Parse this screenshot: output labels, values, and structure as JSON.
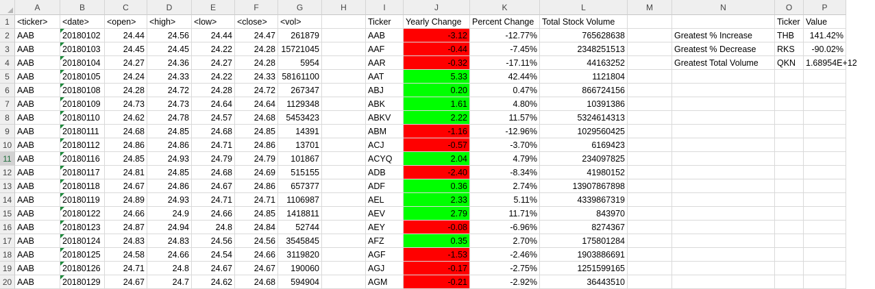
{
  "columns": [
    "A",
    "B",
    "C",
    "D",
    "E",
    "F",
    "G",
    "H",
    "I",
    "J",
    "K",
    "L",
    "M",
    "N",
    "O",
    "P"
  ],
  "rows": [
    "1",
    "2",
    "3",
    "4",
    "5",
    "6",
    "7",
    "8",
    "9",
    "10",
    "11",
    "12",
    "13",
    "14",
    "15",
    "16",
    "17",
    "18",
    "19",
    "20"
  ],
  "selected_row": "11",
  "data_headers": [
    "<ticker>",
    "<date>",
    "<open>",
    "<high>",
    "<low>",
    "<close>",
    "<vol>"
  ],
  "data_rows": [
    [
      "AAB",
      "20180102",
      "24.44",
      "24.56",
      "24.44",
      "24.47",
      "261879"
    ],
    [
      "AAB",
      "20180103",
      "24.45",
      "24.45",
      "24.22",
      "24.28",
      "15721045"
    ],
    [
      "AAB",
      "20180104",
      "24.27",
      "24.36",
      "24.27",
      "24.28",
      "5954"
    ],
    [
      "AAB",
      "20180105",
      "24.24",
      "24.33",
      "24.22",
      "24.33",
      "58161100"
    ],
    [
      "AAB",
      "20180108",
      "24.28",
      "24.72",
      "24.28",
      "24.72",
      "267347"
    ],
    [
      "AAB",
      "20180109",
      "24.73",
      "24.73",
      "24.64",
      "24.64",
      "1129348"
    ],
    [
      "AAB",
      "20180110",
      "24.62",
      "24.78",
      "24.57",
      "24.68",
      "5453423"
    ],
    [
      "AAB",
      "20180111",
      "24.68",
      "24.85",
      "24.68",
      "24.85",
      "14391"
    ],
    [
      "AAB",
      "20180112",
      "24.86",
      "24.86",
      "24.71",
      "24.86",
      "13701"
    ],
    [
      "AAB",
      "20180116",
      "24.85",
      "24.93",
      "24.79",
      "24.79",
      "101867"
    ],
    [
      "AAB",
      "20180117",
      "24.81",
      "24.85",
      "24.68",
      "24.69",
      "515155"
    ],
    [
      "AAB",
      "20180118",
      "24.67",
      "24.86",
      "24.67",
      "24.86",
      "657377"
    ],
    [
      "AAB",
      "20180119",
      "24.89",
      "24.93",
      "24.71",
      "24.71",
      "1106987"
    ],
    [
      "AAB",
      "20180122",
      "24.66",
      "24.9",
      "24.66",
      "24.85",
      "1418811"
    ],
    [
      "AAB",
      "20180123",
      "24.87",
      "24.94",
      "24.8",
      "24.84",
      "52744"
    ],
    [
      "AAB",
      "20180124",
      "24.83",
      "24.83",
      "24.56",
      "24.56",
      "3545845"
    ],
    [
      "AAB",
      "20180125",
      "24.58",
      "24.66",
      "24.54",
      "24.66",
      "3119820"
    ],
    [
      "AAB",
      "20180126",
      "24.71",
      "24.8",
      "24.67",
      "24.67",
      "190060"
    ],
    [
      "AAB",
      "20180129",
      "24.67",
      "24.7",
      "24.62",
      "24.68",
      "594904"
    ]
  ],
  "summary_headers": [
    "Ticker",
    "Yearly Change",
    "Percent Change",
    "Total Stock Volume"
  ],
  "summary_rows": [
    {
      "ticker": "AAB",
      "change": "-3.12",
      "pct": "-12.77%",
      "vol": "765628638",
      "color": "#ff0000"
    },
    {
      "ticker": "AAF",
      "change": "-0.44",
      "pct": "-7.45%",
      "vol": "2348251513",
      "color": "#ff0000"
    },
    {
      "ticker": "AAR",
      "change": "-0.32",
      "pct": "-17.11%",
      "vol": "44163252",
      "color": "#ff0000"
    },
    {
      "ticker": "AAT",
      "change": "5.33",
      "pct": "42.44%",
      "vol": "1121804",
      "color": "#00ff00"
    },
    {
      "ticker": "ABJ",
      "change": "0.20",
      "pct": "0.47%",
      "vol": "866724156",
      "color": "#00ff00"
    },
    {
      "ticker": "ABK",
      "change": "1.61",
      "pct": "4.80%",
      "vol": "10391386",
      "color": "#00ff00"
    },
    {
      "ticker": "ABKV",
      "change": "2.22",
      "pct": "11.57%",
      "vol": "5324614313",
      "color": "#00ff00"
    },
    {
      "ticker": "ABM",
      "change": "-1.16",
      "pct": "-12.96%",
      "vol": "1029560425",
      "color": "#ff0000"
    },
    {
      "ticker": "ACJ",
      "change": "-0.57",
      "pct": "-3.70%",
      "vol": "6169423",
      "color": "#ff0000"
    },
    {
      "ticker": "ACYQ",
      "change": "2.04",
      "pct": "4.79%",
      "vol": "234097825",
      "color": "#00ff00"
    },
    {
      "ticker": "ADB",
      "change": "-2.40",
      "pct": "-8.34%",
      "vol": "41980152",
      "color": "#ff0000"
    },
    {
      "ticker": "ADF",
      "change": "0.36",
      "pct": "2.74%",
      "vol": "13907867898",
      "color": "#00ff00"
    },
    {
      "ticker": "AEL",
      "change": "2.33",
      "pct": "5.11%",
      "vol": "4339867319",
      "color": "#00ff00"
    },
    {
      "ticker": "AEV",
      "change": "2.79",
      "pct": "11.71%",
      "vol": "843970",
      "color": "#00ff00"
    },
    {
      "ticker": "AEY",
      "change": "-0.08",
      "pct": "-6.96%",
      "vol": "8274367",
      "color": "#ff0000"
    },
    {
      "ticker": "AFZ",
      "change": "0.35",
      "pct": "2.70%",
      "vol": "175801284",
      "color": "#00ff00"
    },
    {
      "ticker": "AGF",
      "change": "-1.53",
      "pct": "-2.46%",
      "vol": "1903886691",
      "color": "#ff0000"
    },
    {
      "ticker": "AGJ",
      "change": "-0.17",
      "pct": "-2.75%",
      "vol": "1251599165",
      "color": "#ff0000"
    },
    {
      "ticker": "AGM",
      "change": "-0.21",
      "pct": "-2.92%",
      "vol": "36443510",
      "color": "#ff0000"
    }
  ],
  "greatest_headers": [
    "Ticker",
    "Value"
  ],
  "greatest_rows": [
    {
      "label": "Greatest % Increase",
      "ticker": "THB",
      "value": "141.42%"
    },
    {
      "label": "Greatest % Decrease",
      "ticker": "RKS",
      "value": "-90.02%"
    },
    {
      "label": "Greatest Total Volume",
      "ticker": "QKN",
      "value": "1.68954E+12"
    }
  ]
}
